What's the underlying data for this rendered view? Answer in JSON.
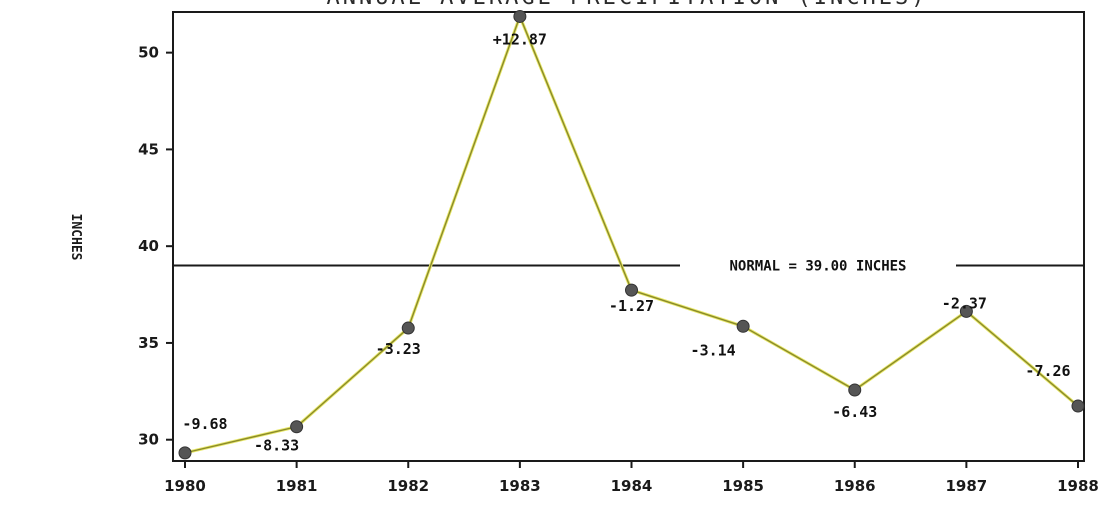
{
  "chart_data": {
    "type": "line",
    "title": "ANNUAL AVERAGE PRECIPITATION (INCHES)",
    "xlabel": "",
    "ylabel": "INCHES",
    "x": [
      "1980",
      "1981",
      "1982",
      "1983",
      "1984",
      "1985",
      "1986",
      "1987",
      "1988"
    ],
    "series": [
      {
        "values": [
          29.32,
          30.67,
          35.77,
          51.87,
          37.73,
          35.86,
          32.57,
          36.63,
          31.74
        ],
        "labels": [
          "-9.68",
          "-8.33",
          "-3.23",
          "+12.87",
          "-1.27",
          "-3.14",
          "-6.43",
          "-2.37",
          "-7.26"
        ]
      }
    ],
    "reference_line": {
      "value": 39.0,
      "label": "NORMAL = 39.00 INCHES"
    },
    "ylim": [
      28.9,
      52.1
    ],
    "yticks": [
      30,
      35,
      40,
      45,
      50
    ],
    "grid": false,
    "legend": "none",
    "colors": {
      "line": "#8a8a2a",
      "line_highlight": "#e8e86a",
      "marker": "#555555",
      "axis": "#1a1a1a"
    }
  }
}
